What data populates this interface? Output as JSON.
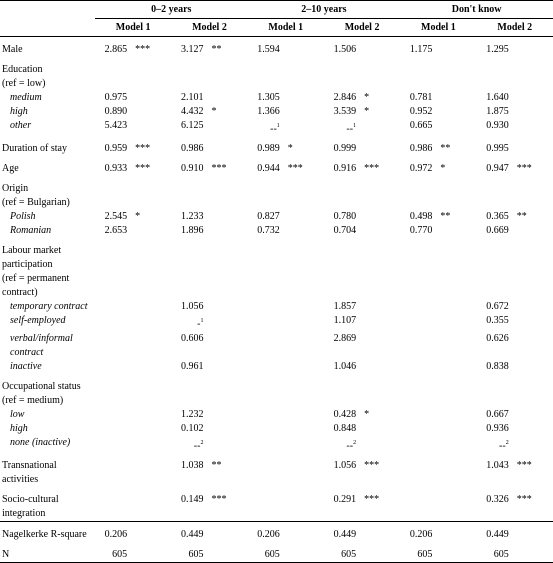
{
  "table": {
    "groups": [
      "0–2 years",
      "2–10 years",
      "Don't know"
    ],
    "models": [
      "Model 1",
      "Model 2"
    ],
    "rows": [
      {
        "label": "Male",
        "cells": [
          {
            "value": "2.865",
            "sig": "***"
          },
          {
            "value": "3.127",
            "sig": "**"
          },
          {
            "value": "1.594"
          },
          {
            "value": "1.506"
          },
          {
            "value": "1.175"
          },
          {
            "value": "1.295"
          }
        ]
      },
      {
        "label": "Education",
        "ref": "(ref = low)",
        "items": [
          {
            "label": "medium",
            "cells": [
              {
                "value": "0.975"
              },
              {
                "value": "2.101"
              },
              {
                "value": "1.305"
              },
              {
                "value": "2.846",
                "sig": "*"
              },
              {
                "value": "0.781"
              },
              {
                "value": "1.640"
              }
            ]
          },
          {
            "label": "high",
            "cells": [
              {
                "value": "0.890"
              },
              {
                "value": "4.432",
                "sig": "*"
              },
              {
                "value": "1.366"
              },
              {
                "value": "3.539",
                "sig": "*"
              },
              {
                "value": "0.952"
              },
              {
                "value": "1.875"
              }
            ]
          },
          {
            "label": "other",
            "cells": [
              {
                "value": "5.423"
              },
              {
                "value": "6.125"
              },
              {
                "value": "--",
                "note": "1"
              },
              {
                "value": "--",
                "note": "1"
              },
              {
                "value": "0.665"
              },
              {
                "value": "0.930"
              }
            ]
          }
        ]
      },
      {
        "label": "Duration of stay",
        "cells": [
          {
            "value": "0.959",
            "sig": "***"
          },
          {
            "value": "0.986"
          },
          {
            "value": "0.989",
            "sig": "*"
          },
          {
            "value": "0.999"
          },
          {
            "value": "0.986",
            "sig": "**"
          },
          {
            "value": "0.995"
          }
        ]
      },
      {
        "label": "Age",
        "cells": [
          {
            "value": "0.933",
            "sig": "***"
          },
          {
            "value": "0.910",
            "sig": "***"
          },
          {
            "value": "0.944",
            "sig": "***"
          },
          {
            "value": "0.916",
            "sig": "***"
          },
          {
            "value": "0.972",
            "sig": "*"
          },
          {
            "value": "0.947",
            "sig": "***"
          }
        ]
      },
      {
        "label": "Origin",
        "ref": "(ref = Bulgarian)",
        "items": [
          {
            "label": "Polish",
            "cells": [
              {
                "value": "2.545",
                "sig": "*"
              },
              {
                "value": "1.233"
              },
              {
                "value": "0.827"
              },
              {
                "value": "0.780"
              },
              {
                "value": "0.498",
                "sig": "**"
              },
              {
                "value": "0.365",
                "sig": "**"
              }
            ]
          },
          {
            "label": "Romanian",
            "cells": [
              {
                "value": "2.653"
              },
              {
                "value": "1.896"
              },
              {
                "value": "0.732"
              },
              {
                "value": "0.704"
              },
              {
                "value": "0.770"
              },
              {
                "value": "0.669"
              }
            ]
          }
        ]
      },
      {
        "label": "Labour market participation",
        "ref": "(ref = permanent contract)",
        "items": [
          {
            "label": "temporary contract",
            "cells": [
              null,
              {
                "value": "1.056"
              },
              null,
              {
                "value": "1.857"
              },
              null,
              {
                "value": "0.672"
              }
            ]
          },
          {
            "label": "self-employed",
            "cells": [
              null,
              {
                "value": "-",
                "note": "1"
              },
              null,
              {
                "value": "1.107"
              },
              null,
              {
                "value": "0.355"
              }
            ]
          },
          {
            "label": "verbal/informal contract",
            "cells": [
              null,
              {
                "value": "0.606"
              },
              null,
              {
                "value": "2.869"
              },
              null,
              {
                "value": "0.626"
              }
            ]
          },
          {
            "label": "inactive",
            "cells": [
              null,
              {
                "value": "0.961"
              },
              null,
              {
                "value": "1.046"
              },
              null,
              {
                "value": "0.838"
              }
            ]
          }
        ]
      },
      {
        "label": "Occupational status",
        "ref": "(ref = medium)",
        "items": [
          {
            "label": "low",
            "cells": [
              null,
              {
                "value": "1.232"
              },
              null,
              {
                "value": "0.428",
                "sig": "*"
              },
              null,
              {
                "value": "0.667"
              }
            ]
          },
          {
            "label": "high",
            "cells": [
              null,
              {
                "value": "0.102"
              },
              null,
              {
                "value": "0.848"
              },
              null,
              {
                "value": "0.936"
              }
            ]
          },
          {
            "label": "none (inactive)",
            "cells": [
              null,
              {
                "value": "--",
                "note": "2"
              },
              null,
              {
                "value": "--",
                "note": "2"
              },
              null,
              {
                "value": "--",
                "note": "2"
              }
            ]
          }
        ]
      },
      {
        "label": "Transnational activities",
        "cells": [
          null,
          {
            "value": "1.038",
            "sig": "**"
          },
          null,
          {
            "value": "1.056",
            "sig": "***"
          },
          null,
          {
            "value": "1.043",
            "sig": "***"
          }
        ]
      },
      {
        "label": "Socio-cultural integration",
        "cells": [
          null,
          {
            "value": "0.149",
            "sig": "***"
          },
          null,
          {
            "value": "0.291",
            "sig": "***"
          },
          null,
          {
            "value": "0.326",
            "sig": "***"
          }
        ]
      },
      {
        "label": "Nagelkerke R-square",
        "cells": [
          {
            "value": "0.206"
          },
          {
            "value": "0.449"
          },
          {
            "value": "0.206"
          },
          {
            "value": "0.449"
          },
          {
            "value": "0.206"
          },
          {
            "value": "0.449"
          }
        ]
      },
      {
        "label": "N",
        "cells": [
          {
            "value": "605"
          },
          {
            "value": "605"
          },
          {
            "value": "605"
          },
          {
            "value": "605"
          },
          {
            "value": "605"
          },
          {
            "value": "605"
          }
        ]
      }
    ]
  }
}
